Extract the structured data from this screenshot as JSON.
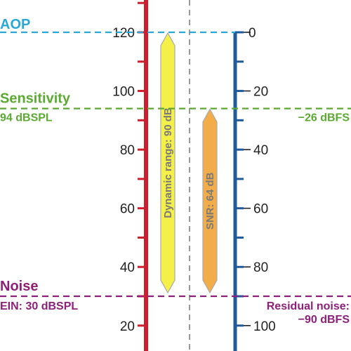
{
  "left_scale": {
    "unit": "dBSPL",
    "min": 10,
    "max": 130,
    "ticks": [
      20,
      40,
      60,
      80,
      100,
      120
    ]
  },
  "right_scale": {
    "unit": "dBFS",
    "ticks": [
      0,
      -20,
      -40,
      -60,
      -80,
      -100
    ]
  },
  "levels": {
    "aop": {
      "title": "AOP",
      "spl": 120,
      "color": "#29a8d8"
    },
    "sensitivity": {
      "title": "Sensitivity",
      "value": "94 dBSPL",
      "spl": 94,
      "right_value": "−26 dBFS",
      "color": "#5aaa32"
    },
    "noise": {
      "title": "Noise",
      "value": "EIN: 30 dBSPL",
      "spl": 30,
      "right_value_line1": "Residual noise:",
      "right_value_line2": "−90 dBFS",
      "color": "#8e1f7a"
    }
  },
  "bars": [
    {
      "label": "Dynamic range: 90 dB",
      "from": 30,
      "to": 120,
      "color": "#f5ef4a"
    },
    {
      "label": "SNR: 64 dB",
      "from": 30,
      "to": 94,
      "color": "#f2ad4a"
    }
  ],
  "colors": {
    "left_axis": "#cc1f2e",
    "right_axis": "#1f5a9a",
    "center_line": "#999999"
  }
}
